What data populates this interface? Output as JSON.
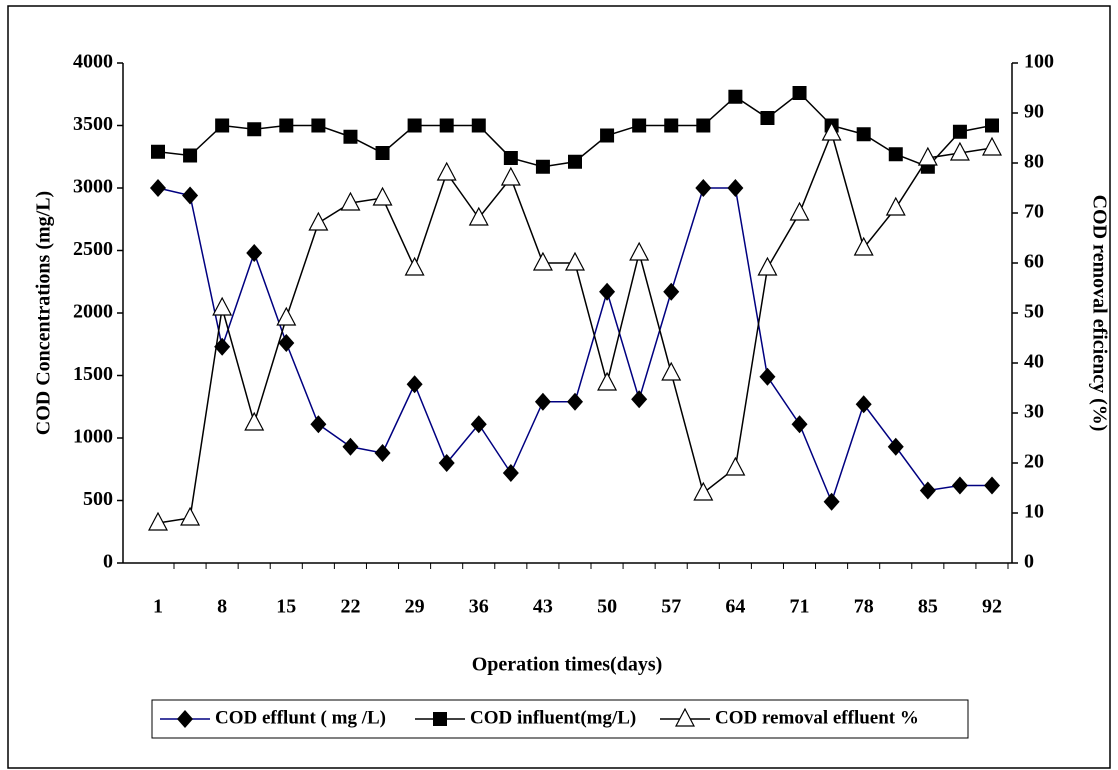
{
  "chart_data": {
    "type": "line",
    "x_label": "Operation times(days)",
    "y_label": "COD Concentrations (mg/L)",
    "y2_label": "COD removal eficiency (%)",
    "categories": [
      "1",
      null,
      "8",
      null,
      "15",
      null,
      "22",
      null,
      "29",
      null,
      "36",
      null,
      "43",
      null,
      "50",
      null,
      "57",
      null,
      "64",
      null,
      "71",
      null,
      "78",
      null,
      "85",
      null,
      "92"
    ],
    "ylim": [
      0,
      4000
    ],
    "yticks": [
      0,
      500,
      1000,
      1500,
      2000,
      2500,
      3000,
      3500,
      4000
    ],
    "y2lim": [
      0,
      100
    ],
    "y2ticks": [
      0,
      10,
      20,
      30,
      40,
      50,
      60,
      70,
      80,
      90,
      100
    ],
    "legend": "bottom",
    "series": [
      {
        "name": "COD efflunt ( mg /L)",
        "color": "#000080",
        "marker": "diamond",
        "values": [
          3000,
          2940,
          1730,
          2480,
          1760,
          1110,
          930,
          880,
          1430,
          800,
          1110,
          720,
          1290,
          1290,
          2170,
          1310,
          2170,
          3000,
          3000,
          1490,
          1110,
          490,
          1270,
          930,
          580,
          620,
          620
        ]
      },
      {
        "name": "COD influent(mg/L)",
        "color": "#000000",
        "marker": "square",
        "values": [
          3290,
          3260,
          3500,
          3470,
          3500,
          3500,
          3410,
          3280,
          3500,
          3500,
          3500,
          3240,
          3170,
          3210,
          3420,
          3500,
          3500,
          3500,
          3730,
          3560,
          3760,
          3500,
          3430,
          3270,
          3170,
          3450,
          3500
        ]
      },
      {
        "name": "COD removal effluent %",
        "color": "#000000",
        "marker": "triangle",
        "axis": "y2",
        "values": [
          8,
          9,
          51,
          28,
          49,
          68,
          72,
          73,
          59,
          78,
          69,
          77,
          60,
          60,
          36,
          62,
          38,
          14,
          19,
          59,
          70,
          86,
          63,
          71,
          81,
          82,
          83
        ]
      }
    ]
  }
}
